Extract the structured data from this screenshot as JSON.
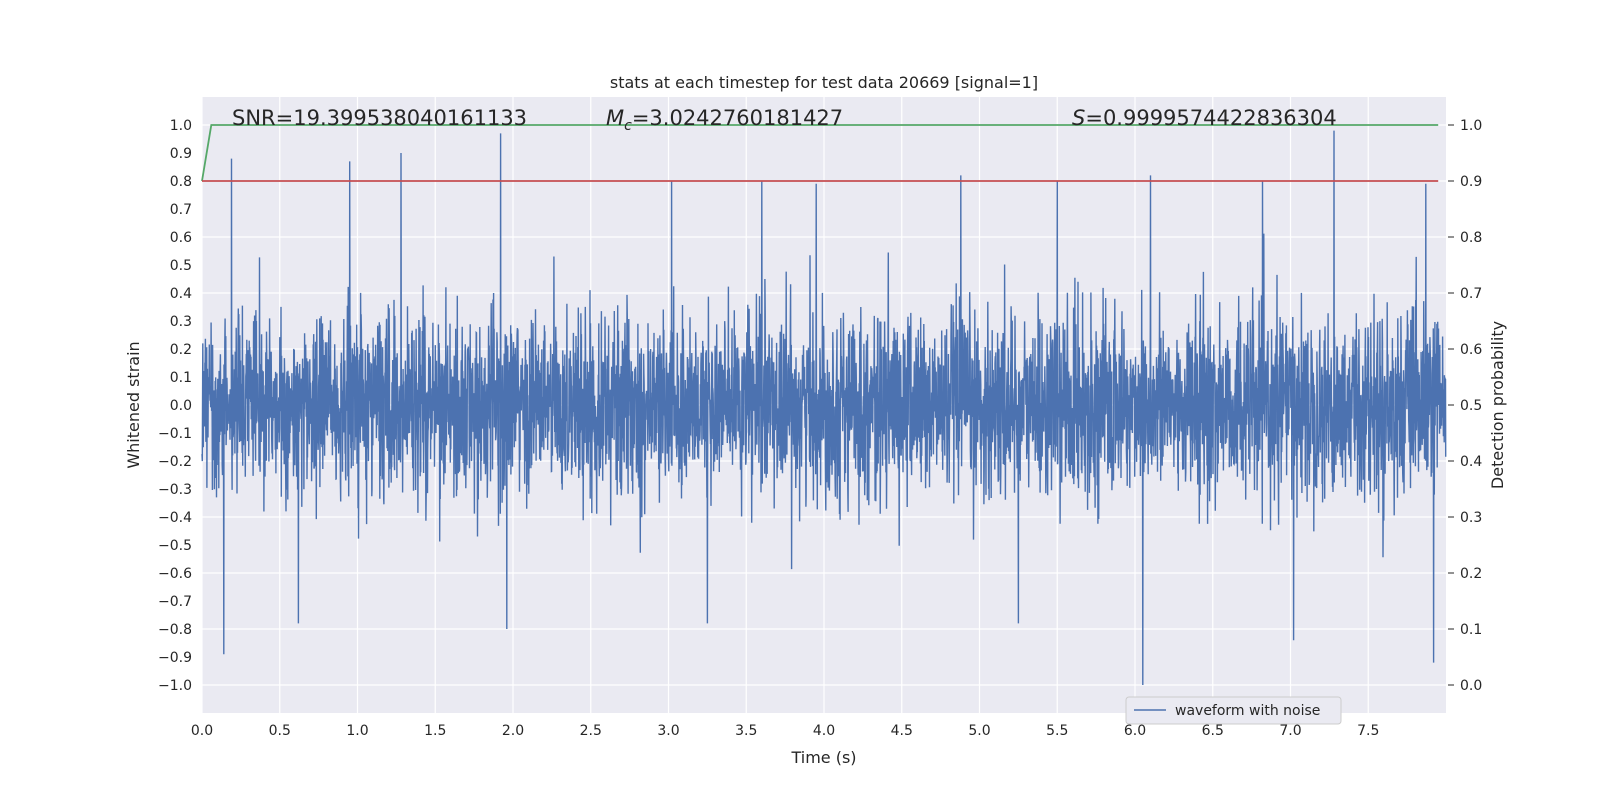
{
  "chart_data": {
    "type": "line",
    "title": "stats at each timestep for test data 20669 [signal=1]",
    "xlabel": "Time (s)",
    "ylabel": "Whitened strain",
    "ylabel_right": "Detection probability",
    "xlim": [
      0.0,
      8.0
    ],
    "ylim": [
      -1.1,
      1.1
    ],
    "ylim_right": [
      -0.05,
      1.05
    ],
    "xticks": [
      "0.0",
      "0.5",
      "1.0",
      "1.5",
      "2.0",
      "2.5",
      "3.0",
      "3.5",
      "4.0",
      "4.5",
      "5.0",
      "5.5",
      "6.0",
      "6.5",
      "7.0",
      "7.5"
    ],
    "yticks": [
      "1.0",
      "0.9",
      "0.8",
      "0.7",
      "0.6",
      "0.5",
      "0.4",
      "0.3",
      "0.2",
      "0.1",
      "0.0",
      "−0.1",
      "−0.2",
      "−0.3",
      "−0.4",
      "−0.5",
      "−0.6",
      "−0.7",
      "−0.8",
      "−0.9",
      "−1.0"
    ],
    "yticks_right": [
      "1.0",
      "0.9",
      "0.8",
      "0.7",
      "0.6",
      "0.5",
      "0.4",
      "0.3",
      "0.2",
      "0.1",
      "0.0"
    ],
    "grid": true,
    "annotations": {
      "snr": "SNR=19.399538040161133",
      "mc_symbol": "M",
      "mc_sub": "c",
      "mc_value": "=3.0242760181427",
      "s_symbol": "S",
      "s_value": "=0.9999574422836304"
    },
    "series": [
      {
        "name": "waveform with noise",
        "axis": "left",
        "color": "#4c72b0",
        "description": "dense noisy strain trace",
        "duration_s": 8.0,
        "typical_upper": 0.35,
        "typical_lower": -0.35,
        "spikes": [
          {
            "t": 0.19,
            "y": 0.88
          },
          {
            "t": 0.95,
            "y": 0.87
          },
          {
            "t": 1.28,
            "y": 0.9
          },
          {
            "t": 1.92,
            "y": 0.97
          },
          {
            "t": 3.02,
            "y": 0.8
          },
          {
            "t": 3.6,
            "y": 0.8
          },
          {
            "t": 3.95,
            "y": 0.79
          },
          {
            "t": 4.88,
            "y": 0.82
          },
          {
            "t": 5.5,
            "y": 0.8
          },
          {
            "t": 6.1,
            "y": 0.82
          },
          {
            "t": 6.82,
            "y": 0.8
          },
          {
            "t": 7.28,
            "y": 0.98
          },
          {
            "t": 7.87,
            "y": 0.79
          },
          {
            "t": 0.14,
            "y": -0.89
          },
          {
            "t": 0.62,
            "y": -0.78
          },
          {
            "t": 1.96,
            "y": -0.8
          },
          {
            "t": 3.25,
            "y": -0.78
          },
          {
            "t": 5.25,
            "y": -0.78
          },
          {
            "t": 6.05,
            "y": -1.0
          },
          {
            "t": 7.02,
            "y": -0.84
          },
          {
            "t": 7.92,
            "y": -0.92
          }
        ]
      },
      {
        "name": "detection probability",
        "axis": "right",
        "color": "#55a868",
        "x": [
          0.0,
          0.06,
          7.95
        ],
        "y": [
          0.9,
          1.0,
          1.0
        ]
      },
      {
        "name": "threshold",
        "axis": "right",
        "color": "#c44e52",
        "x": [
          0.0,
          7.95
        ],
        "y": [
          0.9,
          0.9
        ]
      }
    ],
    "legend": {
      "position": "lower-right",
      "label": "waveform with noise"
    }
  }
}
